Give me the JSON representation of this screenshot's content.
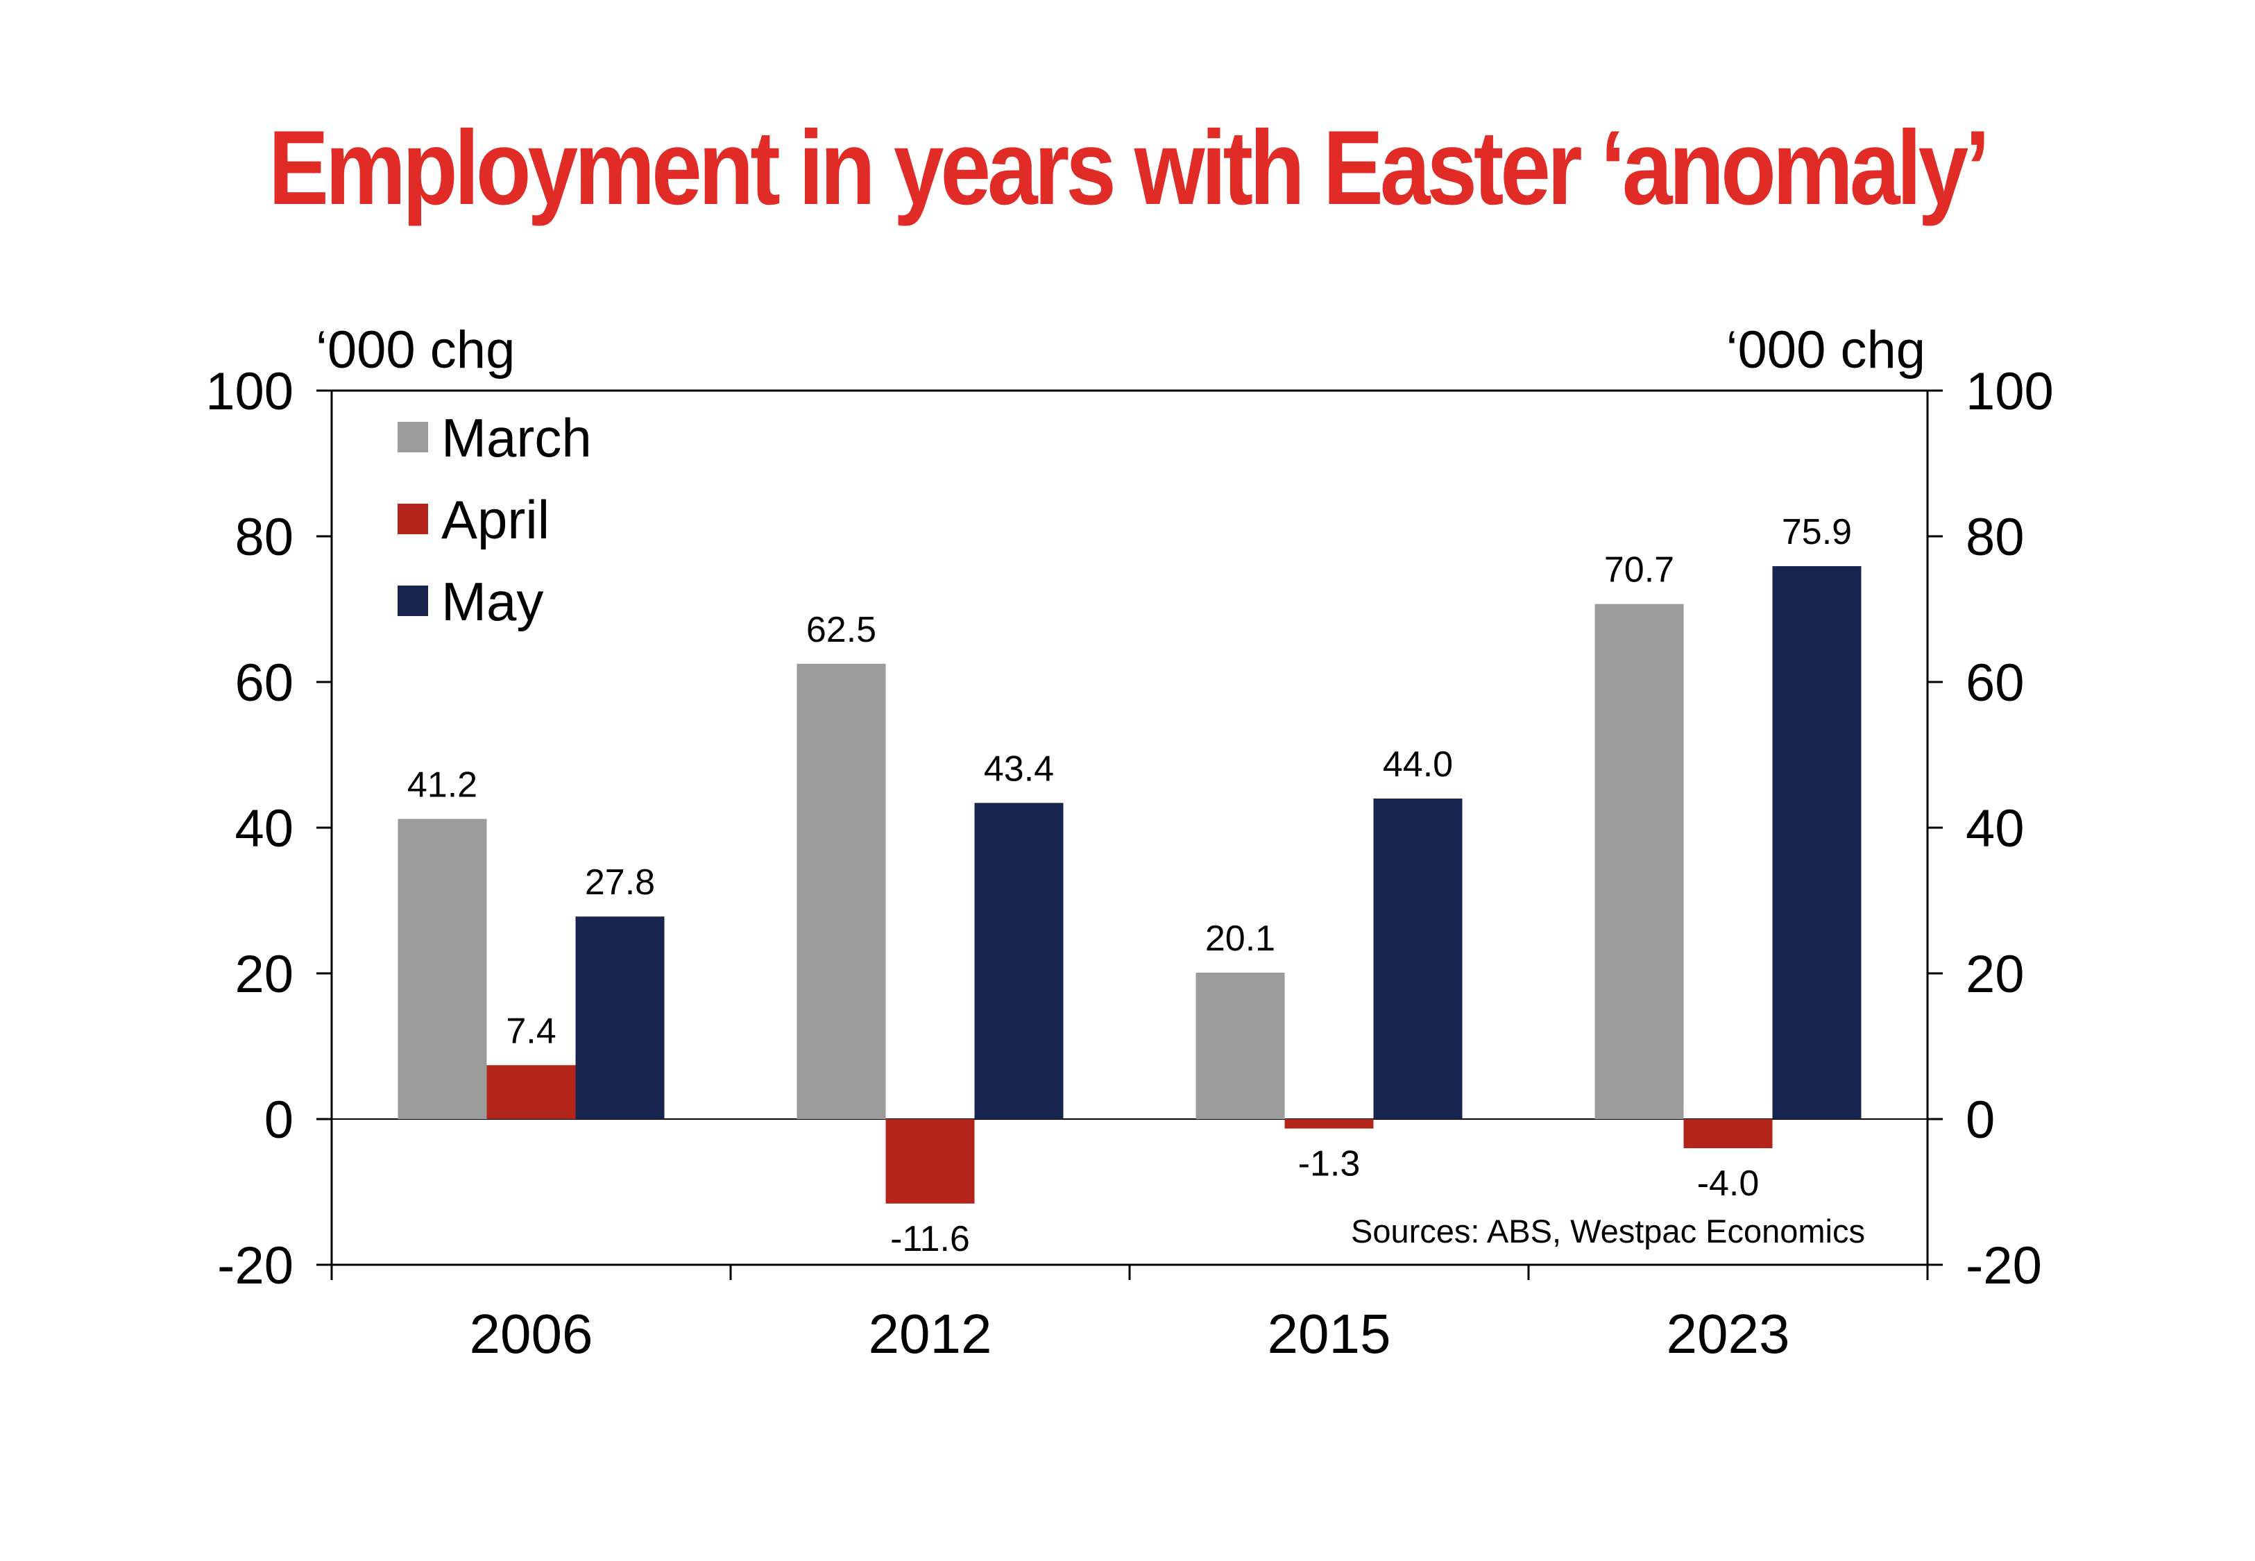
{
  "title": "Employment in years with Easter ‘anomaly’",
  "colors": {
    "title": "#e02b26",
    "March": "#9b9b9b",
    "April": "#b3251b",
    "May": "#18254f"
  },
  "chart_data": {
    "type": "bar",
    "title": "Employment in years with Easter ‘anomaly’",
    "categories": [
      "2006",
      "2012",
      "2015",
      "2023"
    ],
    "series": [
      {
        "name": "March",
        "values": [
          41.2,
          62.5,
          20.1,
          70.7
        ],
        "labels": [
          "41.2",
          "62.5",
          "20.1",
          "70.7"
        ]
      },
      {
        "name": "April",
        "values": [
          7.4,
          -11.6,
          -1.3,
          -4.0
        ],
        "labels": [
          "7.4",
          "-11.6",
          "-1.3",
          "-4.0"
        ]
      },
      {
        "name": "May",
        "values": [
          27.8,
          43.4,
          44.0,
          75.9
        ],
        "labels": [
          "27.8",
          "43.4",
          "44.0",
          "75.9"
        ]
      }
    ],
    "ylim": [
      -20,
      100
    ],
    "yticks": [
      -20,
      0,
      20,
      40,
      60,
      80,
      100
    ],
    "ylabel_left": "‘000 chg",
    "ylabel_right": "‘000 chg",
    "legend_position": "top-left",
    "grid": false,
    "source": "Sources: ABS, Westpac Economics"
  }
}
